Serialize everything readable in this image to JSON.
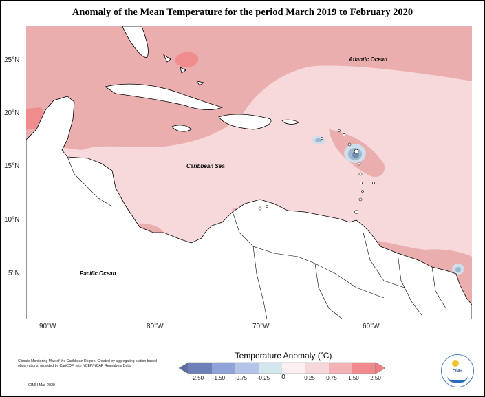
{
  "title": "Anomaly of the Mean Temperature for the period March 2019 to February 2020",
  "map": {
    "lat_labels": [
      "25°N",
      "20°N",
      "15°N",
      "10°N",
      "5°N"
    ],
    "lon_labels": [
      "90°W",
      "80°W",
      "70°W",
      "60°W"
    ],
    "ocean_labels": {
      "atlantic": "Atlantic Ocean",
      "caribbean": "Caribbean Sea",
      "pacific": "Pacific Ocean"
    },
    "anomaly_colors": {
      "strong_warm": "#f08c8e",
      "warm": "#ebaeae",
      "mild_warm": "#f7d8db",
      "cool": "#9cb8cc",
      "strong_cool": "#6e8cad"
    }
  },
  "legend": {
    "title": "Temperature Anomaly (˚C)",
    "ticks": [
      "-2.50",
      "-1.50",
      "-0.75",
      "-0.25",
      "0",
      "0.25",
      "0.75",
      "1.50",
      "2.50"
    ],
    "colors": [
      "#6f80b8",
      "#8fa3d6",
      "#b3c4e8",
      "#d4e6ee",
      "#fbeff1",
      "#f8d7dc",
      "#f2b3b7",
      "#f08a8c"
    ]
  },
  "footnote": {
    "text": "Climate Monitoring Map of the Caribbean Region. Created by aggregating station based observations, provided by CariCOF, with NCEP/NCAR Reanalysis Data.",
    "date": "CIMH Mar-2020"
  },
  "logo": {
    "text": "CIMH"
  }
}
